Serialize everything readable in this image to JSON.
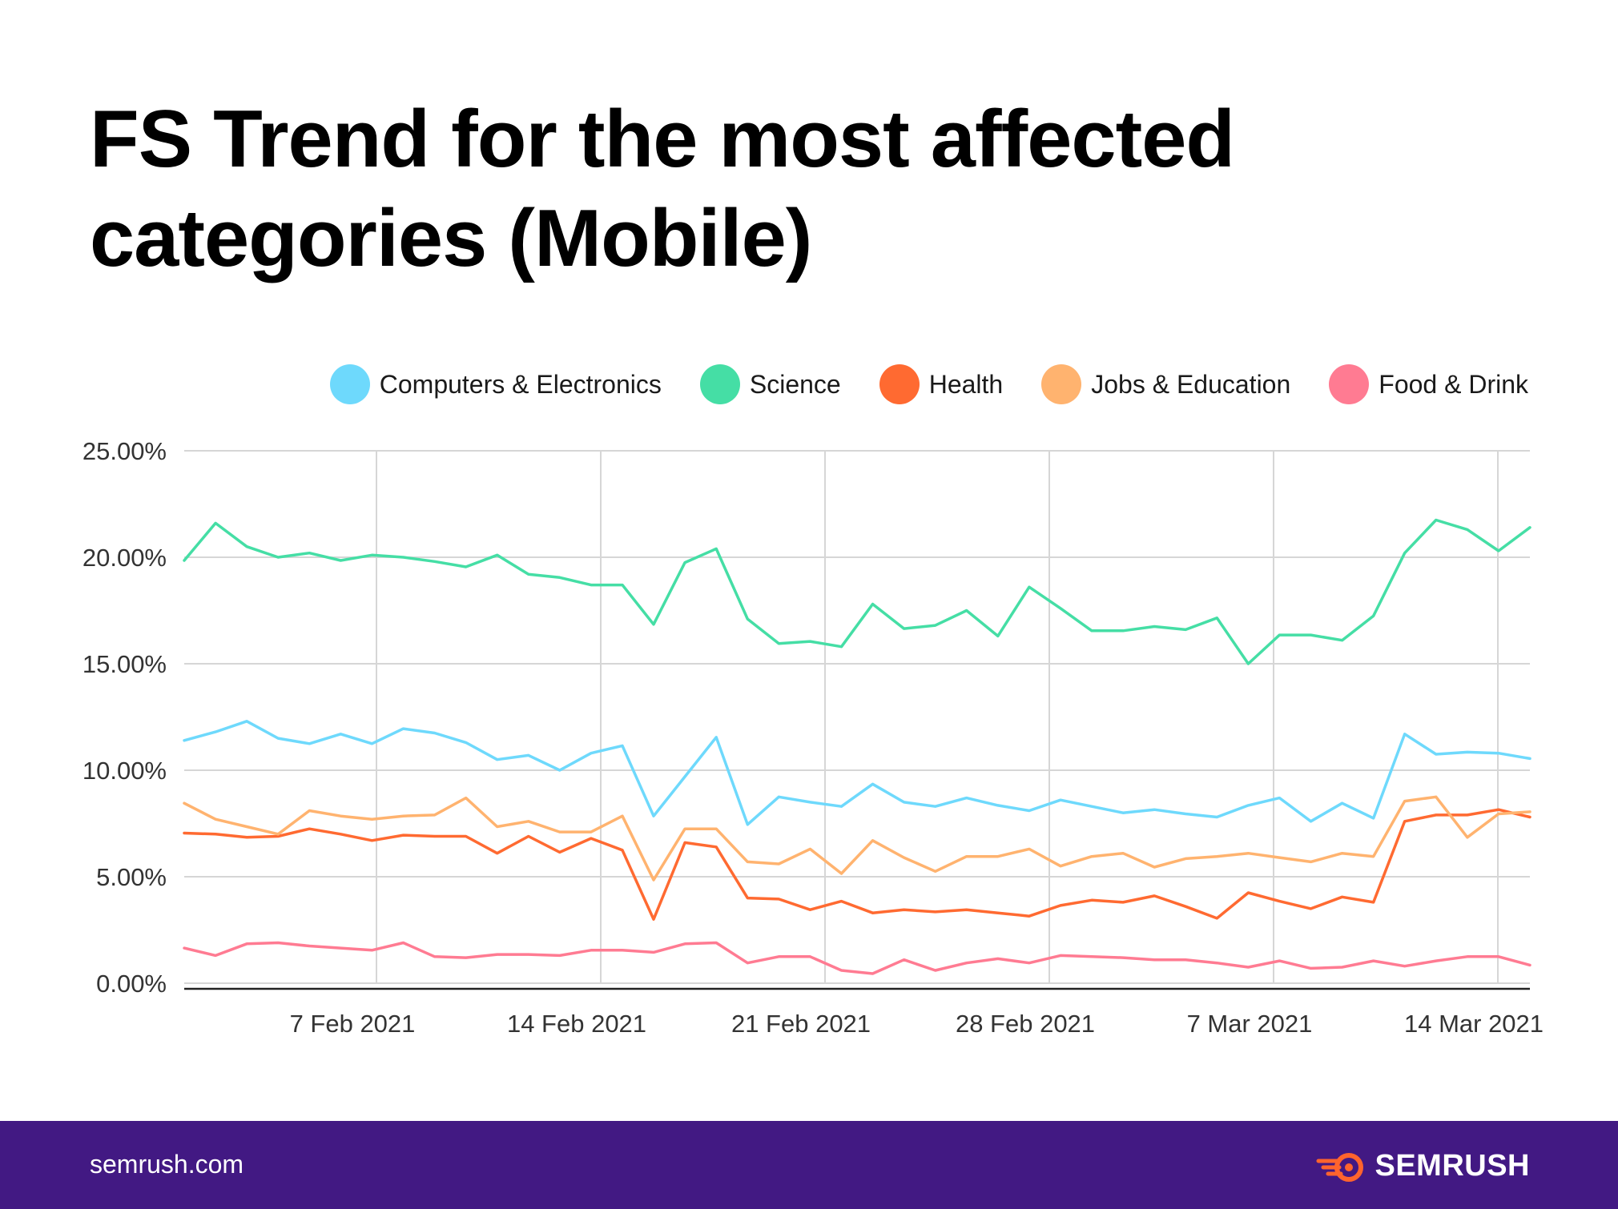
{
  "title": "FS Trend for the most affected categories (Mobile)",
  "footer": {
    "site": "semrush.com",
    "brand": "SEMRUSH",
    "brand_color": "#ff642d"
  },
  "chart_data": {
    "type": "line",
    "title": "FS Trend for the most affected categories (Mobile)",
    "xlabel": "",
    "ylabel": "",
    "ylim": [
      0,
      25
    ],
    "y_ticks": [
      "0.00%",
      "5.00%",
      "10.00%",
      "15.00%",
      "20.00%",
      "25.00%"
    ],
    "x_ticks": [
      "7 Feb 2021",
      "14 Feb 2021",
      "21 Feb 2021",
      "28 Feb 2021",
      "7 Mar 2021",
      "14 Mar 2021"
    ],
    "x_start": "2021-02-01",
    "x_end": "2021-03-15",
    "grid": true,
    "legend_position": "top-right",
    "x": [
      "2021-02-01",
      "2021-02-02",
      "2021-02-03",
      "2021-02-04",
      "2021-02-05",
      "2021-02-06",
      "2021-02-07",
      "2021-02-08",
      "2021-02-09",
      "2021-02-10",
      "2021-02-11",
      "2021-02-12",
      "2021-02-13",
      "2021-02-14",
      "2021-02-15",
      "2021-02-16",
      "2021-02-17",
      "2021-02-18",
      "2021-02-19",
      "2021-02-20",
      "2021-02-21",
      "2021-02-22",
      "2021-02-23",
      "2021-02-24",
      "2021-02-25",
      "2021-02-26",
      "2021-02-27",
      "2021-02-28",
      "2021-03-01",
      "2021-03-02",
      "2021-03-03",
      "2021-03-04",
      "2021-03-05",
      "2021-03-06",
      "2021-03-07",
      "2021-03-08",
      "2021-03-09",
      "2021-03-10",
      "2021-03-11",
      "2021-03-12",
      "2021-03-13",
      "2021-03-14",
      "2021-03-15",
      "2021-03-16"
    ],
    "series": [
      {
        "name": "Computers & Electronics",
        "color": "#6ed9fc",
        "values": [
          11.4,
          11.8,
          12.3,
          11.5,
          11.25,
          11.7,
          11.25,
          11.95,
          11.75,
          11.3,
          10.5,
          10.7,
          10.0,
          10.8,
          11.15,
          7.85,
          9.7,
          11.55,
          7.45,
          8.75,
          8.5,
          8.3,
          9.35,
          8.5,
          8.3,
          8.7,
          8.35,
          8.1,
          8.6,
          8.3,
          8.0,
          8.15,
          7.95,
          7.8,
          8.35,
          8.7,
          7.6,
          8.45,
          7.75,
          11.7,
          10.75,
          10.85,
          10.8,
          10.55
        ]
      },
      {
        "name": "Science",
        "color": "#45dea5",
        "values": [
          19.85,
          21.6,
          20.5,
          20.0,
          20.2,
          19.85,
          20.1,
          20.0,
          19.8,
          19.55,
          20.1,
          19.2,
          19.05,
          18.7,
          18.7,
          16.85,
          19.75,
          20.4,
          17.1,
          15.95,
          16.05,
          15.8,
          17.8,
          16.65,
          16.8,
          17.5,
          16.3,
          18.6,
          17.6,
          16.55,
          16.55,
          16.75,
          16.6,
          17.15,
          15.0,
          16.35,
          16.35,
          16.1,
          17.25,
          20.2,
          21.75,
          21.3,
          20.3,
          21.4
        ]
      },
      {
        "name": "Health",
        "color": "#ff6a31",
        "values": [
          7.05,
          7.0,
          6.85,
          6.9,
          7.25,
          7.0,
          6.7,
          6.95,
          6.9,
          6.9,
          6.1,
          6.9,
          6.15,
          6.8,
          6.25,
          3.0,
          6.6,
          6.4,
          4.0,
          3.95,
          3.45,
          3.85,
          3.3,
          3.45,
          3.35,
          3.45,
          3.3,
          3.15,
          3.65,
          3.9,
          3.8,
          4.1,
          3.6,
          3.05,
          4.25,
          3.85,
          3.5,
          4.05,
          3.8,
          7.6,
          7.9,
          7.9,
          8.15,
          7.8
        ]
      },
      {
        "name": "Jobs & Education",
        "color": "#ffb36f",
        "values": [
          8.45,
          7.7,
          7.35,
          7.0,
          8.1,
          7.85,
          7.7,
          7.85,
          7.9,
          8.7,
          7.35,
          7.6,
          7.1,
          7.1,
          7.85,
          4.85,
          7.25,
          7.25,
          5.7,
          5.6,
          6.3,
          5.15,
          6.7,
          5.9,
          5.25,
          5.95,
          5.95,
          6.3,
          5.5,
          5.95,
          6.1,
          5.45,
          5.85,
          5.95,
          6.1,
          5.9,
          5.7,
          6.1,
          5.95,
          8.55,
          8.75,
          6.85,
          7.95,
          8.05
        ]
      },
      {
        "name": "Food & Drink",
        "color": "#ff7b92",
        "values": [
          1.65,
          1.3,
          1.85,
          1.9,
          1.75,
          1.65,
          1.55,
          1.9,
          1.25,
          1.2,
          1.35,
          1.35,
          1.3,
          1.55,
          1.55,
          1.45,
          1.85,
          1.9,
          0.95,
          1.25,
          1.25,
          0.6,
          0.45,
          1.1,
          0.6,
          0.95,
          1.15,
          0.95,
          1.3,
          1.25,
          1.2,
          1.1,
          1.1,
          0.95,
          0.75,
          1.05,
          0.7,
          0.75,
          1.05,
          0.8,
          1.05,
          1.25,
          1.25,
          0.85
        ]
      }
    ]
  }
}
